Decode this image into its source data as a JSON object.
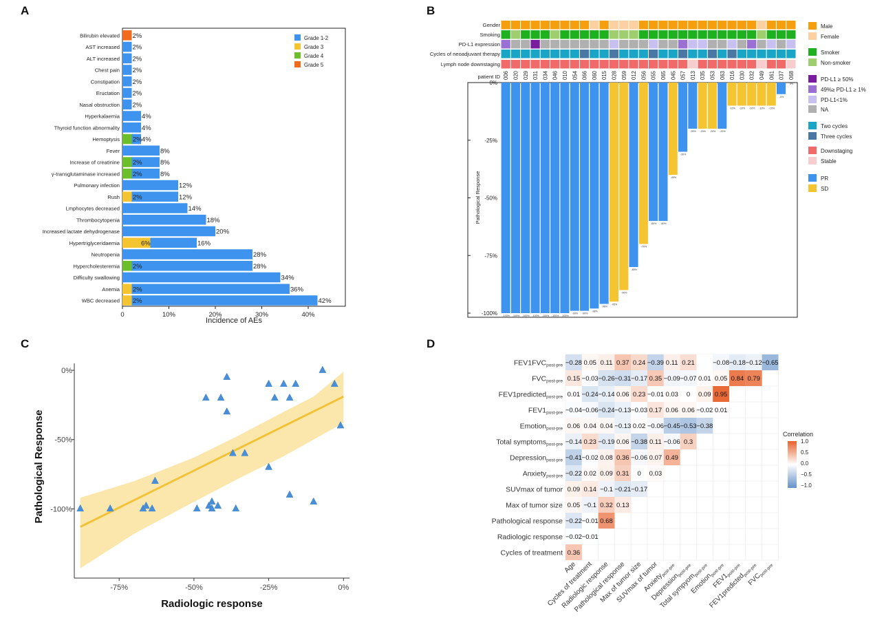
{
  "panels": {
    "a": "A",
    "b": "B",
    "c": "C",
    "d": "D"
  },
  "chart_data": [
    {
      "panel": "A",
      "type": "bar",
      "orientation": "horizontal",
      "stacked": true,
      "xlabel": "Incidence of  AEs",
      "xlim": [
        0,
        48
      ],
      "xticks": [
        "0",
        "10%",
        "20%",
        "30%",
        "40%"
      ],
      "legend": {
        "entries": [
          "Grade 1-2",
          "Grade 3",
          "Grade 4",
          "Grade 5"
        ],
        "placement": "top-right"
      },
      "colors": {
        "Grade 1-2": "#3d93ee",
        "Grade 3": "#f5c431",
        "Grade 4": "#6cbf2b",
        "Grade 5": "#f26a1e"
      },
      "categories": [
        "Bilirubin elevated",
        "AST increased",
        "ALT increased",
        "Chest pain",
        "Constipation",
        "Eructation",
        "Nasal obstruction",
        "Hyperkalaemia",
        "Thyroid function abnormality",
        "Hemoptysis",
        "Fever",
        "Increase of creatinine",
        "γ-transglutaminase increased",
        "Pulmonary infection",
        "Rush",
        "Lmphocytes decreased",
        "Thrombocytopenia",
        "Increased lactate dehydrogenase",
        "Hypertriglyceridaemia",
        "Neutropenia",
        "Hypercholesteremia",
        "Difficulty swallowing",
        "Anemia",
        "WBC decreased"
      ],
      "series": [
        {
          "name": "Grade 1-2",
          "values": [
            0,
            2,
            2,
            2,
            2,
            2,
            2,
            4,
            4,
            2,
            8,
            6,
            6,
            12,
            10,
            14,
            18,
            20,
            10,
            28,
            26,
            34,
            34,
            40
          ]
        },
        {
          "name": "Grade 3",
          "values": [
            0,
            0,
            0,
            0,
            0,
            0,
            0,
            0,
            0,
            0,
            0,
            0,
            0,
            0,
            2,
            0,
            0,
            0,
            6,
            0,
            0,
            0,
            2,
            2
          ]
        },
        {
          "name": "Grade 4",
          "values": [
            0,
            0,
            0,
            0,
            0,
            0,
            0,
            0,
            0,
            2,
            0,
            2,
            2,
            0,
            0,
            0,
            0,
            0,
            0,
            0,
            2,
            0,
            0,
            0
          ]
        },
        {
          "name": "Grade 5",
          "values": [
            2,
            0,
            0,
            0,
            0,
            0,
            0,
            0,
            0,
            0,
            0,
            0,
            0,
            0,
            0,
            0,
            0,
            0,
            0,
            0,
            0,
            0,
            0,
            0
          ]
        }
      ],
      "inner_labels": [
        "",
        "",
        "",
        "",
        "",
        "",
        "",
        "",
        "",
        "2%",
        "",
        "2%",
        "2%",
        "",
        "2%",
        "",
        "",
        "",
        "6%",
        "",
        "2%",
        "",
        "2%",
        "2%"
      ],
      "total_labels": [
        "2%",
        "2%",
        "2%",
        "2%",
        "2%",
        "2%",
        "2%",
        "4%",
        "4%",
        "4%",
        "8%",
        "8%",
        "8%",
        "12%",
        "12%",
        "14%",
        "18%",
        "20%",
        "16%",
        "28%",
        "28%",
        "34%",
        "36%",
        "42%"
      ]
    },
    {
      "panel": "B",
      "type": "bar",
      "subtype": "waterfall",
      "ylabel": "Pathological Response",
      "ylim": [
        -100,
        0
      ],
      "yticks": [
        "0%",
        "-25%",
        "-50%",
        "-75%",
        "-100%"
      ],
      "patient_id_label": "patient ID",
      "patient_ids": [
        "006",
        "020",
        "029",
        "031",
        "034",
        "046",
        "010",
        "054",
        "066",
        "060",
        "015",
        "028",
        "059",
        "012",
        "056",
        "055",
        "065",
        "045",
        "057",
        "013",
        "035",
        "053",
        "063",
        "016",
        "030",
        "032",
        "049",
        "061",
        "037",
        "068"
      ],
      "values": [
        -100,
        -100,
        -100,
        -100,
        -100,
        -100,
        -100,
        -99,
        -99,
        -98,
        -96,
        -95,
        -90,
        -80,
        -70,
        -60,
        -60,
        -40,
        -30,
        -20,
        -20,
        -20,
        -20,
        -10,
        -10,
        -10,
        -10,
        -10,
        -5,
        0
      ],
      "response": [
        "PR",
        "PR",
        "PR",
        "PR",
        "PR",
        "PR",
        "PR",
        "PR",
        "PR",
        "PR",
        "PR",
        "SD",
        "SD",
        "PR",
        "SD",
        "PR",
        "PR",
        "SD",
        "PR",
        "PR",
        "SD",
        "SD",
        "PR",
        "SD",
        "SD",
        "SD",
        "SD",
        "SD",
        "PR",
        "SD"
      ],
      "bar_labels": [
        "-100%",
        "-100%",
        "-100%",
        "-100%",
        "-100%",
        "-100%",
        "-100%",
        "-99%",
        "-99%",
        "-98%",
        "-96%",
        "-95%",
        "-90%",
        "-80%",
        "-70%",
        "-60%",
        "-60%",
        "-40%",
        "-30%",
        "-20%",
        "-20%",
        "-20%",
        "-20%",
        "-10%",
        "-10%",
        "-10%",
        "-10%",
        "-10%",
        "-5%",
        "0%"
      ],
      "tracks": [
        {
          "label": "Gender",
          "values": [
            "M",
            "M",
            "M",
            "M",
            "M",
            "M",
            "M",
            "M",
            "M",
            "F",
            "M",
            "F",
            "F",
            "F",
            "M",
            "M",
            "M",
            "M",
            "M",
            "M",
            "M",
            "M",
            "M",
            "M",
            "M",
            "M",
            "F",
            "M",
            "M",
            "M"
          ]
        },
        {
          "label": "Smoking",
          "values": [
            "S",
            "N",
            "S",
            "S",
            "S",
            "N",
            "S",
            "S",
            "S",
            "S",
            "S",
            "N",
            "N",
            "N",
            "S",
            "S",
            "S",
            "S",
            "S",
            "S",
            "S",
            "S",
            "S",
            "S",
            "S",
            "S",
            "N",
            "S",
            "S",
            "S"
          ]
        },
        {
          "label": "PD-L1 expression",
          "values": [
            "mid",
            "NA",
            "NA",
            "hi",
            "NA",
            "NA",
            "NA",
            "NA",
            "NA",
            "NA",
            "NA",
            "lo",
            "NA",
            "NA",
            "NA",
            "lo",
            "NA",
            "NA",
            "mid",
            "lo",
            "lo",
            "NA",
            "NA",
            "lo",
            "NA",
            "mid",
            "NA",
            "lo",
            "NA",
            "lo"
          ]
        },
        {
          "label": "Cycles of neoadjuvant therapy",
          "values": [
            "2",
            "2",
            "2",
            "2",
            "2",
            "2",
            "2",
            "2",
            "3",
            "2",
            "2",
            "3",
            "2",
            "2",
            "2",
            "3",
            "2",
            "2",
            "3",
            "2",
            "2",
            "3",
            "2",
            "3",
            "2",
            "2",
            "2",
            "2",
            "2",
            "2"
          ]
        },
        {
          "label": "Lymph node downstaging",
          "values": [
            "D",
            "D",
            "D",
            "D",
            "D",
            "D",
            "D",
            "D",
            "D",
            "D",
            "D",
            "D",
            "D",
            "D",
            "D",
            "D",
            "D",
            "D",
            "D",
            "S",
            "D",
            "D",
            "D",
            "D",
            "D",
            "D",
            "S",
            "D",
            "D",
            "S"
          ]
        }
      ],
      "legend": [
        {
          "label": "Male",
          "color": "#f59f0f"
        },
        {
          "label": "Female",
          "color": "#fcd0a0"
        },
        {
          "label": "Smoker",
          "color": "#1fb01f"
        },
        {
          "label": "Non-smoker",
          "color": "#9fce6e"
        },
        {
          "label": "PD-L1 ≥ 50%",
          "color": "#7a1ca0"
        },
        {
          "label": "49%≥ PD-L1 ≥ 1%",
          "color": "#9b70d4"
        },
        {
          "label": "PD-L1<1%",
          "color": "#c8c0f0"
        },
        {
          "label": "NA",
          "color": "#b0b0b0"
        },
        {
          "label": "Two cycles",
          "color": "#1aa5c6"
        },
        {
          "label": "Three cycles",
          "color": "#4a77a3"
        },
        {
          "label": "Downstaging",
          "color": "#f06a6a"
        },
        {
          "label": "Stable",
          "color": "#f8cdd0"
        },
        {
          "label": "PR",
          "color": "#3d93ee"
        },
        {
          "label": "SD",
          "color": "#f5c431"
        }
      ]
    },
    {
      "panel": "C",
      "type": "scatter",
      "xlabel": "Radiologic response",
      "ylabel": "Pathological Response",
      "xlim": [
        -90,
        2
      ],
      "ylim": [
        -150,
        5
      ],
      "xticks": [
        "-75%",
        "-50%",
        "-25%",
        "0%"
      ],
      "yticks": [
        "0%",
        "-50%",
        "-100%"
      ],
      "points": [
        [
          -88,
          -100
        ],
        [
          -78,
          -100
        ],
        [
          -67,
          -100
        ],
        [
          -66,
          -98
        ],
        [
          -64,
          -100
        ],
        [
          -63,
          -80
        ],
        [
          -49,
          -100
        ],
        [
          -46,
          -20
        ],
        [
          -45,
          -98
        ],
        [
          -44,
          -95
        ],
        [
          -44,
          -100
        ],
        [
          -42,
          -98
        ],
        [
          -41,
          -20
        ],
        [
          -39,
          -5
        ],
        [
          -39,
          -30
        ],
        [
          -37,
          -60
        ],
        [
          -36,
          -100
        ],
        [
          -33,
          -60
        ],
        [
          -25,
          -10
        ],
        [
          -25,
          -70
        ],
        [
          -23,
          -20
        ],
        [
          -20,
          -10
        ],
        [
          -18,
          -20
        ],
        [
          -18,
          -90
        ],
        [
          -16,
          -10
        ],
        [
          -10,
          -95
        ],
        [
          -7,
          0
        ],
        [
          -3,
          -10
        ],
        [
          -1,
          -40
        ]
      ],
      "fit": {
        "x1": -88,
        "y1": -113,
        "x2": 0,
        "y2": -19
      },
      "ci_upper": [
        [
          -88,
          -92
        ],
        [
          -70,
          -80
        ],
        [
          -50,
          -63
        ],
        [
          -35,
          -47
        ],
        [
          -20,
          -30
        ],
        [
          -10,
          -19
        ],
        [
          0,
          -1
        ]
      ],
      "ci_lower": [
        [
          -88,
          -143
        ],
        [
          -70,
          -118
        ],
        [
          -50,
          -95
        ],
        [
          -35,
          -78
        ],
        [
          -20,
          -62
        ],
        [
          -10,
          -50
        ],
        [
          0,
          -38
        ]
      ]
    },
    {
      "panel": "D",
      "type": "heatmap",
      "legend_title": "Correlation",
      "legend_ticks": [
        "1.0",
        "0.5",
        "0.0",
        "−0.5",
        "−1.0"
      ],
      "columns": [
        "Age",
        "Cycles of treatment",
        "Radiologic response",
        "Pathological response",
        "Max of tumor size",
        "SUVmax of tumor",
        "Anxiety",
        "Depression",
        "Total sympyom",
        "Emotion",
        "FEV1",
        "FEV1predicted",
        "FVC"
      ],
      "column_subs": [
        "",
        "",
        "",
        "",
        "",
        "",
        "post-pre",
        "post-pre",
        "post-pre",
        "post-pre",
        "post-pre",
        "post-pre",
        "post-pre"
      ],
      "rows": [
        "FEV1FVC",
        "FVC",
        "FEV1predicted",
        "FEV1",
        "Emotion",
        "Total symptoms",
        "Depression",
        "Anxiety",
        "SUVmax of tumor",
        "Max of tumor size",
        "Pathological response",
        "Radiologic response",
        "Cycles of treatment"
      ],
      "row_subs": [
        "post-pre",
        "post-pre",
        "post-pre",
        "post-pre",
        "post-pre",
        "post-pre",
        "post-pre",
        "post-pre",
        "",
        "",
        "",
        "",
        ""
      ],
      "values": [
        [
          -0.28,
          0.05,
          0.11,
          0.37,
          0.24,
          -0.39,
          0.11,
          0.21,
          null,
          -0.08,
          -0.18,
          -0.12,
          -0.65
        ],
        [
          0.15,
          -0.03,
          -0.26,
          -0.31,
          -0.17,
          0.35,
          -0.09,
          -0.07,
          0.01,
          0.05,
          0.84,
          0.79
        ],
        [
          0.01,
          -0.24,
          -0.14,
          0.06,
          0.23,
          -0.01,
          0.03,
          0,
          0.09,
          0.95
        ],
        [
          -0.04,
          -0.06,
          -0.24,
          -0.13,
          -0.03,
          0.17,
          0.06,
          0.06,
          -0.02,
          0.01
        ],
        [
          0.06,
          0.04,
          0.04,
          -0.13,
          0.02,
          -0.06,
          -0.45,
          -0.53,
          -0.38
        ],
        [
          -0.14,
          0.23,
          -0.19,
          0.06,
          -0.38,
          0.11,
          -0.06,
          0.3
        ],
        [
          -0.41,
          -0.02,
          0.08,
          0.36,
          -0.06,
          0.07,
          0.49
        ],
        [
          -0.22,
          0.02,
          0.09,
          0.31,
          0,
          0.03
        ],
        [
          0.09,
          0.14,
          -0.1,
          -0.21,
          -0.17
        ],
        [
          0.05,
          -0.1,
          0.32,
          0.13
        ],
        [
          -0.22,
          -0.01,
          0.68
        ],
        [
          -0.02,
          -0.01
        ],
        [
          0.36
        ]
      ],
      "labels": [
        [
          "−0.28",
          "0.05",
          "0.11",
          "0.37",
          "0.24",
          "−0.39",
          "0.11",
          "0.21",
          "",
          "−0.08",
          "−0.18",
          "−0.12",
          "−0.65"
        ],
        [
          "0.15",
          "−0.03",
          "−0.26",
          "−0.31",
          "−0.17",
          "0.35",
          "−0.09",
          "−0.07",
          "0.01",
          "0.05",
          "0.84",
          "0.79"
        ],
        [
          "0.01",
          "−0.24",
          "−0.14",
          "0.06",
          "0.23",
          "−0.01",
          "0.03",
          "0",
          "0.09",
          "0.95"
        ],
        [
          "−0.04",
          "−0.06",
          "−0.24",
          "−0.13",
          "−0.03",
          "0.17",
          "0.06",
          "0.06",
          "−0.02",
          "0.01"
        ],
        [
          "0.06",
          "0.04",
          "0.04",
          "−0.13",
          "0.02",
          "−0.06",
          "−0.45",
          "−0.53",
          "−0.38"
        ],
        [
          "−0.14",
          "0.23",
          "−0.19",
          "0.06",
          "−0.38",
          "0.11",
          "−0.06",
          "0.3"
        ],
        [
          "−0.41",
          "−0.02",
          "0.08",
          "0.36",
          "−0.06",
          "0.07",
          "0.49"
        ],
        [
          "−0.22",
          "0.02",
          "0.09",
          "0.31",
          "0",
          "0.03"
        ],
        [
          "0.09",
          "0.14",
          "−0.1",
          "−0.21",
          "−0.17"
        ],
        [
          "0.05",
          "−0.1",
          "0.32",
          "0.13"
        ],
        [
          "−0.22",
          "−0.01",
          "0.68"
        ],
        [
          "−0.02",
          "−0.01"
        ],
        [
          "0.36"
        ]
      ]
    }
  ]
}
